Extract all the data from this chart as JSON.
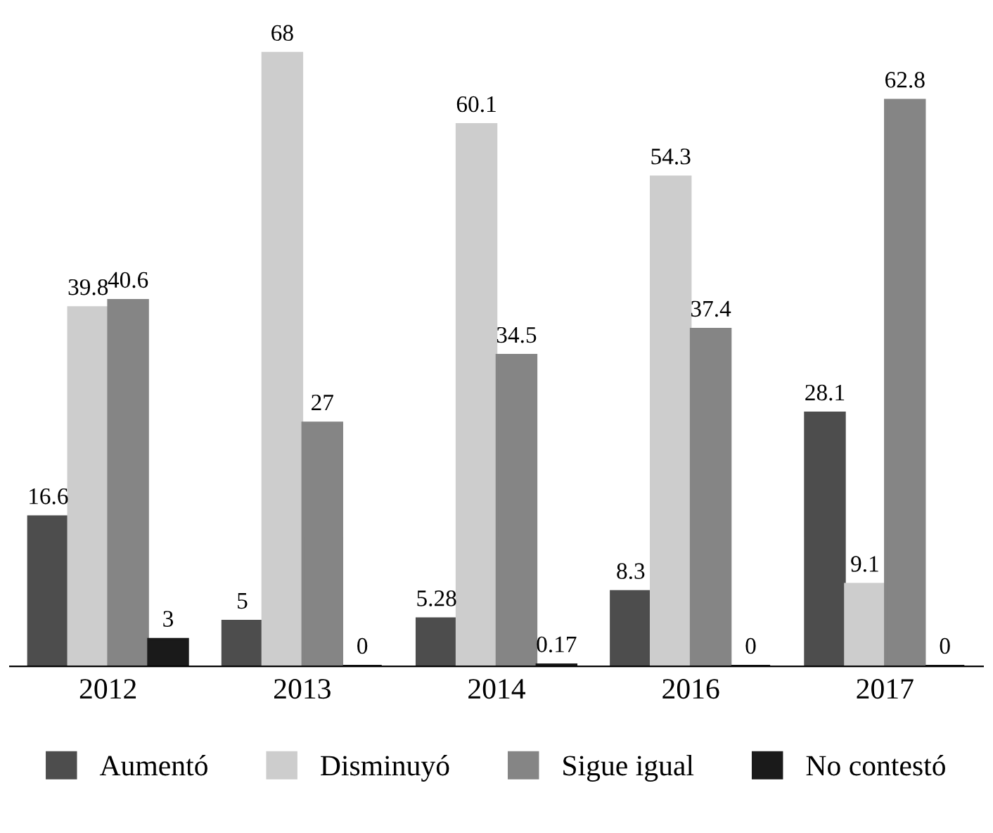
{
  "chart_data": {
    "type": "bar",
    "categories": [
      "2012",
      "2013",
      "2014",
      "2016",
      "2017"
    ],
    "series": [
      {
        "name": "Aumentó",
        "color": "#4d4d4d",
        "values": [
          16.6,
          5,
          5.28,
          8.3,
          28.1
        ]
      },
      {
        "name": "Disminuyó",
        "color": "#cdcdcd",
        "values": [
          39.8,
          68,
          60.1,
          54.3,
          9.1
        ]
      },
      {
        "name": "Sigue igual",
        "color": "#858585",
        "values": [
          40.6,
          27,
          34.5,
          37.4,
          62.8
        ]
      },
      {
        "name": "No contestó",
        "color": "#1a1a1a",
        "values": [
          3,
          0,
          0.17,
          0,
          0
        ]
      }
    ],
    "data_labels": true,
    "legend": "bottom",
    "grid": false
  }
}
